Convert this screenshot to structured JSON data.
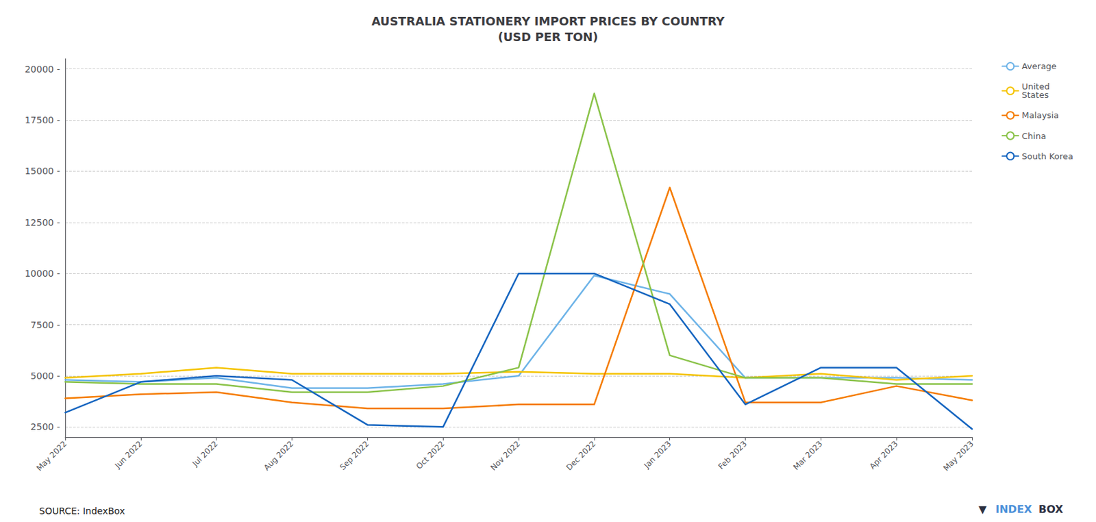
{
  "chart_data": {
    "type": "line",
    "title": "AUSTRALIA STATIONERY IMPORT PRICES BY COUNTRY\n(USD PER TON)",
    "categories": [
      "May 2022",
      "Jun 2022",
      "Jul 2022",
      "Aug 2022",
      "Sep 2022",
      "Oct 2022",
      "Nov 2022",
      "Dec 2022",
      "Jan 2023",
      "Feb 2023",
      "Mar 2023",
      "Apr 2023",
      "May 2023"
    ],
    "series": [
      {
        "name": "Average",
        "color": "#6eb4e8",
        "values": [
          4800,
          4700,
          4900,
          4400,
          4400,
          4600,
          5000,
          9900,
          9000,
          4900,
          4900,
          4900,
          4800
        ]
      },
      {
        "name": "United\nStates",
        "color": "#f5c400",
        "values": [
          4900,
          5100,
          5400,
          5100,
          5100,
          5100,
          5200,
          5100,
          5100,
          4900,
          5100,
          4800,
          5000
        ]
      },
      {
        "name": "Malaysia",
        "color": "#f57c00",
        "values": [
          3900,
          4100,
          4200,
          3700,
          3400,
          3400,
          3600,
          3600,
          14200,
          3700,
          3700,
          4500,
          3800
        ]
      },
      {
        "name": "China",
        "color": "#8bc34a",
        "values": [
          4700,
          4600,
          4600,
          4200,
          4200,
          4500,
          5400,
          18800,
          6000,
          4900,
          4900,
          4600,
          4600
        ]
      },
      {
        "name": "South Korea",
        "color": "#1565c0",
        "values": [
          3200,
          4700,
          5000,
          4800,
          2600,
          2500,
          10000,
          10000,
          8500,
          3600,
          5400,
          5400,
          2400
        ]
      }
    ],
    "ylim": [
      2000,
      20500
    ],
    "yticks": [
      {
        "value": 2500,
        "label": "2500 -"
      },
      {
        "value": 5000,
        "label": "5000 -"
      },
      {
        "value": 7500,
        "label": "7500 -"
      },
      {
        "value": 10000,
        "label": "10000 -"
      },
      {
        "value": 12500,
        "label": "12500 -"
      },
      {
        "value": 15000,
        "label": "15000 -"
      },
      {
        "value": 17500,
        "label": "17500 -"
      },
      {
        "value": 20000,
        "label": "20000 -"
      }
    ],
    "grid": true,
    "legend": "right",
    "annotations": [
      "SOURCE: IndexBox",
      "▼",
      "INDEX",
      "BOX"
    ]
  }
}
